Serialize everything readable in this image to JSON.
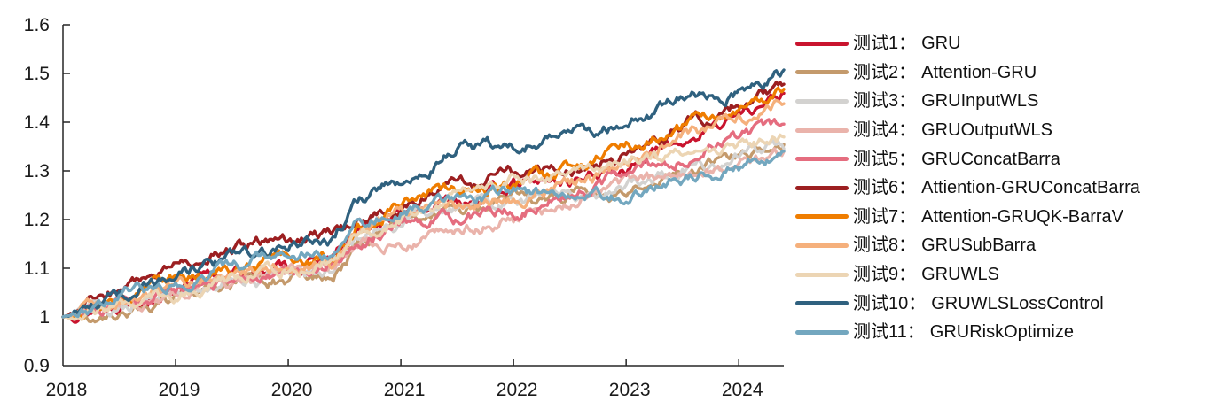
{
  "chart_data": {
    "type": "line",
    "title": "",
    "xlabel": "",
    "ylabel": "",
    "grid": false,
    "legend_position": "right",
    "xlim": [
      2018,
      2024.4
    ],
    "ylim": [
      0.9,
      1.6
    ],
    "x_tick_labels": [
      "2018",
      "2019",
      "2020",
      "2021",
      "2022",
      "2023",
      "2024"
    ],
    "x_tick_values": [
      2018,
      2019,
      2020,
      2021,
      2022,
      2023,
      2024
    ],
    "y_tick_labels": [
      "0.9",
      "1",
      "1.1",
      "1.2",
      "1.3",
      "1.4",
      "1.5",
      "1.6"
    ],
    "y_tick_values": [
      0.9,
      1.0,
      1.1,
      1.2,
      1.3,
      1.4,
      1.5,
      1.6
    ],
    "x": [
      2018,
      2018.5,
      2019,
      2019.5,
      2020,
      2020.4,
      2020.6,
      2021,
      2021.5,
      2022,
      2022.5,
      2023,
      2023.5,
      2024,
      2024.4
    ],
    "series": [
      {
        "legend_prefix": "测试1",
        "separator": "：",
        "name": "GRU",
        "color": "#c9142e",
        "values": [
          1.0,
          1.03,
          1.06,
          1.09,
          1.1,
          1.12,
          1.17,
          1.21,
          1.24,
          1.27,
          1.28,
          1.31,
          1.36,
          1.42,
          1.455
        ]
      },
      {
        "legend_prefix": "测试2",
        "separator": "：",
        "name": "Attention-GRU",
        "color": "#c49a6c",
        "values": [
          1.0,
          1.01,
          1.03,
          1.06,
          1.075,
          1.08,
          1.15,
          1.195,
          1.22,
          1.24,
          1.25,
          1.26,
          1.3,
          1.34,
          1.365
        ]
      },
      {
        "legend_prefix": "测试3",
        "separator": "：",
        "name": "GRUInputWLS",
        "color": "#d3d2d0",
        "values": [
          1.0,
          1.02,
          1.045,
          1.07,
          1.085,
          1.1,
          1.16,
          1.2,
          1.22,
          1.24,
          1.25,
          1.265,
          1.3,
          1.33,
          1.35
        ]
      },
      {
        "legend_prefix": "测试4",
        "separator": "：",
        "name": "GRUOutputWLS",
        "color": "#eab3ab",
        "values": [
          1.0,
          1.025,
          1.05,
          1.075,
          1.095,
          1.1,
          1.15,
          1.16,
          1.18,
          1.2,
          1.23,
          1.27,
          1.29,
          1.315,
          1.335
        ]
      },
      {
        "legend_prefix": "测试5",
        "separator": "：",
        "name": "GRUConcatBarra",
        "color": "#e56d7f",
        "values": [
          1.0,
          1.025,
          1.055,
          1.08,
          1.09,
          1.11,
          1.16,
          1.19,
          1.2,
          1.215,
          1.25,
          1.29,
          1.33,
          1.37,
          1.39
        ]
      },
      {
        "legend_prefix": "测试6",
        "separator": "：",
        "name": "Attiention-GRUConcatBarra",
        "color": "#9c1f21",
        "values": [
          1.0,
          1.05,
          1.11,
          1.145,
          1.16,
          1.17,
          1.2,
          1.23,
          1.27,
          1.295,
          1.3,
          1.335,
          1.39,
          1.44,
          1.47
        ]
      },
      {
        "legend_prefix": "测试7",
        "separator": "：",
        "name": "Attention-GRUQK-BarraV",
        "color": "#ef7d00",
        "values": [
          1.0,
          1.035,
          1.075,
          1.1,
          1.12,
          1.12,
          1.18,
          1.235,
          1.26,
          1.27,
          1.3,
          1.35,
          1.39,
          1.43,
          1.46
        ]
      },
      {
        "legend_prefix": "测试8",
        "separator": "：",
        "name": "GRUSubBarra",
        "color": "#f5b07c",
        "values": [
          1.0,
          1.03,
          1.06,
          1.085,
          1.11,
          1.11,
          1.17,
          1.22,
          1.23,
          1.24,
          1.27,
          1.31,
          1.37,
          1.41,
          1.44
        ]
      },
      {
        "legend_prefix": "测试9",
        "separator": "：",
        "name": "GRUWLS",
        "color": "#ecd5b4",
        "values": [
          1.0,
          1.025,
          1.05,
          1.08,
          1.105,
          1.11,
          1.17,
          1.2,
          1.25,
          1.28,
          1.29,
          1.315,
          1.33,
          1.35,
          1.365
        ]
      },
      {
        "legend_prefix": "测试10",
        "separator": "：",
        "name": "GRUWLSLossControl",
        "color": "#2f617f",
        "values": [
          1.0,
          1.045,
          1.09,
          1.12,
          1.145,
          1.16,
          1.24,
          1.28,
          1.345,
          1.35,
          1.37,
          1.4,
          1.45,
          1.46,
          1.505
        ]
      },
      {
        "legend_prefix": "测试11",
        "separator": "：",
        "name": "GRURiskOptimize",
        "color": "#73a7bf",
        "values": [
          1.0,
          1.04,
          1.07,
          1.1,
          1.13,
          1.13,
          1.19,
          1.22,
          1.24,
          1.255,
          1.25,
          1.25,
          1.28,
          1.31,
          1.34
        ]
      }
    ],
    "axis_color": "#262626",
    "line_width": 3.4
  }
}
